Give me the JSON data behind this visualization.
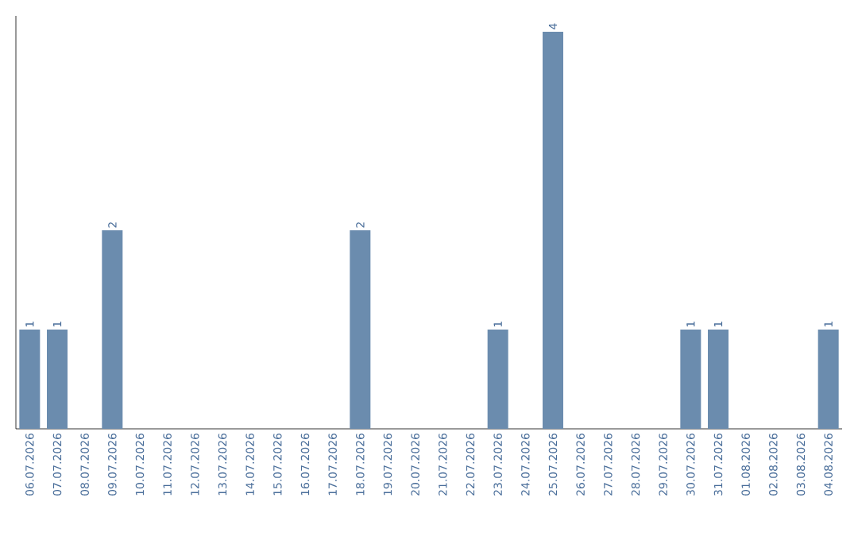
{
  "chart_data": {
    "type": "bar",
    "categories": [
      "06.07.2026",
      "07.07.2026",
      "08.07.2026",
      "09.07.2026",
      "10.07.2026",
      "11.07.2026",
      "12.07.2026",
      "13.07.2026",
      "14.07.2026",
      "15.07.2026",
      "16.07.2026",
      "17.07.2026",
      "18.07.2026",
      "19.07.2026",
      "20.07.2026",
      "21.07.2026",
      "22.07.2026",
      "23.07.2026",
      "24.07.2026",
      "25.07.2026",
      "26.07.2026",
      "27.07.2026",
      "28.07.2026",
      "29.07.2026",
      "30.07.2026",
      "31.07.2026",
      "01.08.2026",
      "02.08.2026",
      "03.08.2026",
      "04.08.2026"
    ],
    "values": [
      1,
      1,
      0,
      2,
      0,
      0,
      0,
      0,
      0,
      0,
      0,
      0,
      2,
      0,
      0,
      0,
      0,
      1,
      0,
      4,
      0,
      0,
      0,
      0,
      1,
      1,
      0,
      0,
      0,
      1
    ],
    "value_labels": [
      "1",
      "1",
      null,
      "2",
      null,
      null,
      null,
      null,
      null,
      null,
      null,
      null,
      "2",
      null,
      null,
      null,
      null,
      "1",
      null,
      "4",
      null,
      null,
      null,
      null,
      "1",
      "1",
      null,
      null,
      null,
      "1"
    ],
    "color": "#6b8cae",
    "tick_labels": "x"
  }
}
